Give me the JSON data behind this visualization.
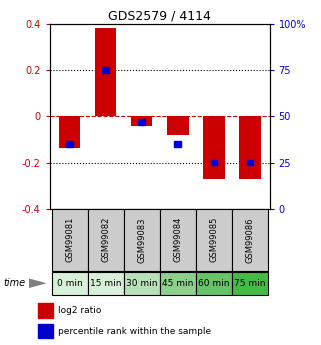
{
  "title": "GDS2579 / 4114",
  "categories": [
    "GSM99081",
    "GSM99082",
    "GSM99083",
    "GSM99084",
    "GSM99085",
    "GSM99086"
  ],
  "time_labels": [
    "0 min",
    "15 min",
    "30 min",
    "45 min",
    "60 min",
    "75 min"
  ],
  "time_colors": [
    "#d8f0d8",
    "#d8f0d8",
    "#b8e0b8",
    "#8cd08c",
    "#66c466",
    "#44bb44"
  ],
  "log2_ratio": [
    -0.135,
    0.383,
    -0.042,
    -0.082,
    -0.27,
    -0.27
  ],
  "percentile_rank": [
    35,
    75,
    47,
    35,
    25,
    25
  ],
  "bar_width": 0.6,
  "ylim": [
    -0.4,
    0.4
  ],
  "yticks_left": [
    -0.4,
    -0.2,
    0.0,
    0.2,
    0.4
  ],
  "ytick_labels_left": [
    "-0.4",
    "-0.2",
    "0",
    "0.2",
    "0.4"
  ],
  "yticks_right_pct": [
    0,
    25,
    50,
    75,
    100
  ],
  "ytick_labels_right": [
    "0",
    "25",
    "50",
    "75",
    "100%"
  ],
  "red_color": "#cc0000",
  "blue_color": "#0000cc",
  "label_box_color": "#cccccc",
  "legend_red": "log2 ratio",
  "legend_blue": "percentile rank within the sample",
  "title_fontsize": 9,
  "tick_fontsize": 7,
  "label_fontsize": 6,
  "time_fontsize": 6.5
}
